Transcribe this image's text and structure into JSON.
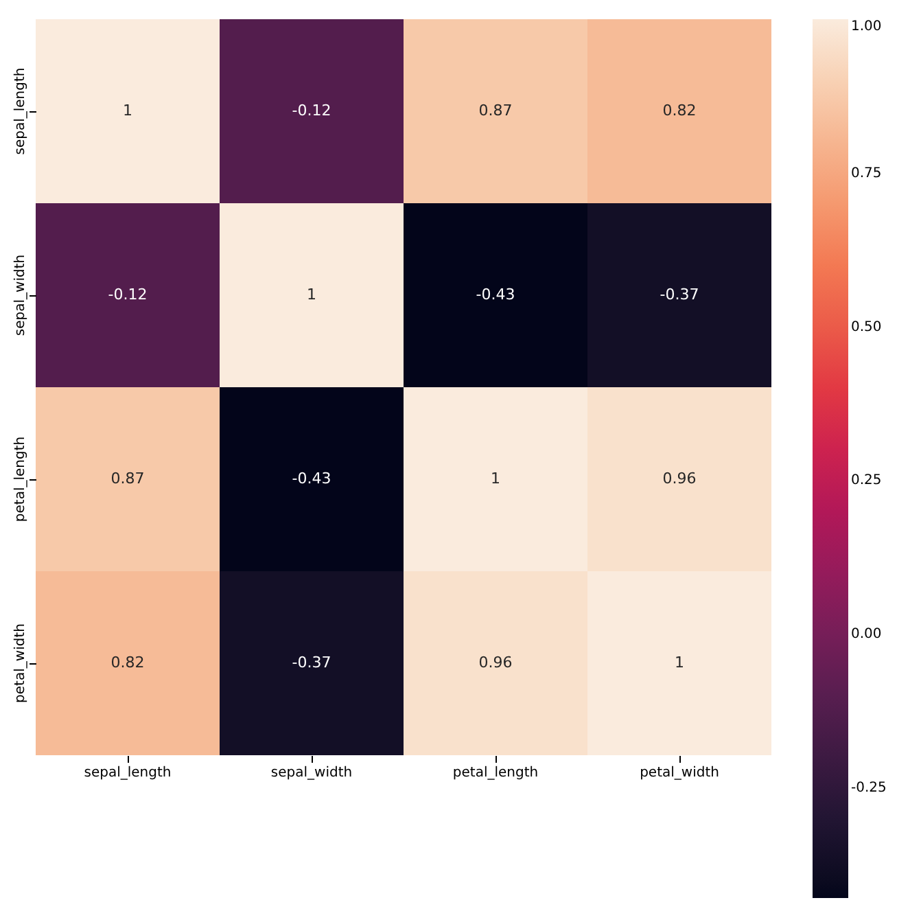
{
  "chart_data": {
    "type": "heatmap",
    "categories": [
      "sepal_length",
      "sepal_width",
      "petal_length",
      "petal_width"
    ],
    "y_categories": [
      "sepal_length",
      "sepal_width",
      "petal_length",
      "petal_width"
    ],
    "cells": [
      [
        1,
        -0.12,
        0.87,
        0.82
      ],
      [
        -0.12,
        1,
        -0.43,
        -0.37
      ],
      [
        0.87,
        -0.43,
        1,
        0.96
      ],
      [
        0.82,
        -0.37,
        0.96,
        1
      ]
    ],
    "clim": [
      -0.43,
      1
    ],
    "cticks": [
      -0.25,
      {
        "value": 0,
        "label": "0.00"
      },
      0.25,
      {
        "value": 0.5,
        "label": "0.50"
      },
      0.75,
      {
        "value": 1,
        "label": "1.00"
      }
    ],
    "data_labels": true
  }
}
